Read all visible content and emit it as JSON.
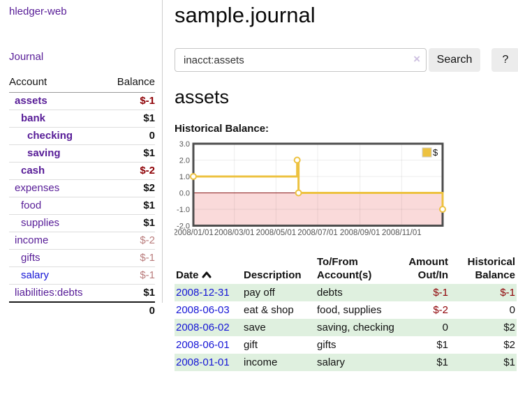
{
  "sidebar": {
    "app_title": "hledger-web",
    "journal_link": "Journal",
    "accounts": {
      "col_account": "Account",
      "col_balance": "Balance",
      "rows": [
        {
          "name": "assets",
          "indent": 0,
          "bold": true,
          "balance": "$-1",
          "balance_style": "negative"
        },
        {
          "name": "bank",
          "indent": 1,
          "bold": true,
          "balance": "$1",
          "balance_style": "normal"
        },
        {
          "name": "checking",
          "indent": 2,
          "bold": true,
          "balance": "0",
          "balance_style": "normal"
        },
        {
          "name": "saving",
          "indent": 2,
          "bold": true,
          "balance": "$1",
          "balance_style": "normal"
        },
        {
          "name": "cash",
          "indent": 1,
          "bold": true,
          "balance": "$-2",
          "balance_style": "negative"
        },
        {
          "name": "expenses",
          "indent": 0,
          "bold": false,
          "balance": "$2",
          "balance_style": "normal"
        },
        {
          "name": "food",
          "indent": 1,
          "bold": false,
          "balance": "$1",
          "balance_style": "normal"
        },
        {
          "name": "supplies",
          "indent": 1,
          "bold": false,
          "balance": "$1",
          "balance_style": "normal"
        },
        {
          "name": "income",
          "indent": 0,
          "bold": false,
          "balance": "$-2",
          "balance_style": "negative-faded"
        },
        {
          "name": "gifts",
          "indent": 1,
          "bold": false,
          "balance": "$-1",
          "balance_style": "negative-faded"
        },
        {
          "name": "salary",
          "indent": 1,
          "bold": false,
          "link_style": "unvisited",
          "balance": "$-1",
          "balance_style": "negative-faded"
        },
        {
          "name": "liabilities:debts",
          "indent": 0,
          "bold": false,
          "balance": "$1",
          "balance_style": "normal"
        }
      ],
      "total": "0"
    }
  },
  "main": {
    "title": "sample.journal",
    "search": {
      "value": "inacct:assets",
      "clear_icon": "×",
      "search_button": "Search",
      "help_button": "?"
    },
    "account_heading": "assets",
    "chart_title": "Historical Balance:"
  },
  "chart_data": {
    "type": "line",
    "step": true,
    "title": "Historical Balance of assets",
    "series": [
      {
        "name": "$",
        "color": "#edc240",
        "points": [
          [
            "2008-01-01",
            1
          ],
          [
            "2008-06-01",
            2
          ],
          [
            "2008-06-03",
            0
          ],
          [
            "2008-12-31",
            -1
          ]
        ]
      }
    ],
    "x_range": [
      "2008-01-01",
      "2008-12-31"
    ],
    "ylim": [
      -2,
      3
    ],
    "y_ticks": [
      {
        "value": 3,
        "label": "3.0"
      },
      {
        "value": 2,
        "label": "2.0"
      },
      {
        "value": 1,
        "label": "1.0"
      },
      {
        "value": 0,
        "label": "0.0"
      },
      {
        "value": -1,
        "label": "-1.0"
      },
      {
        "value": -2,
        "label": "-2.0"
      }
    ],
    "x_ticks": [
      {
        "date": "2008-01-01",
        "label": "2008/01/01"
      },
      {
        "date": "2008-03-01",
        "label": "2008/03/01"
      },
      {
        "date": "2008-05-01",
        "label": "2008/05/01"
      },
      {
        "date": "2008-07-01",
        "label": "2008/07/01"
      },
      {
        "date": "2008-09-01",
        "label": "2008/09/01"
      },
      {
        "date": "2008-11-01",
        "label": "2008/11/01"
      }
    ],
    "legend": {
      "label": "$",
      "position": "top-right"
    },
    "grid": true,
    "colors": {
      "negative_fill": "#fadada",
      "zero_line": "#8b1a1a",
      "border": "#4d4d4d",
      "grid": "rgba(0,0,0,0.07)",
      "tick_text": "#545454",
      "marker_fill": "#ffffff"
    }
  },
  "register": {
    "headers": {
      "date": "Date",
      "description": "Description",
      "tofrom_line1": "To/From",
      "tofrom_line2": "Account(s)",
      "amount_line1": "Amount",
      "amount_line2": "Out/In",
      "balance_line1": "Historical",
      "balance_line2": "Balance"
    },
    "rows": [
      {
        "date": "2008-12-31",
        "description": "pay off",
        "accounts": "debts",
        "amount": "$-1",
        "amount_negative": true,
        "balance": "$-1",
        "balance_negative": true
      },
      {
        "date": "2008-06-03",
        "description": "eat & shop",
        "accounts": "food, supplies",
        "amount": "$-2",
        "amount_negative": true,
        "balance": "0",
        "balance_negative": false
      },
      {
        "date": "2008-06-02",
        "description": "save",
        "accounts": "saving, checking",
        "amount": "0",
        "amount_negative": false,
        "balance": "$2",
        "balance_negative": false
      },
      {
        "date": "2008-06-01",
        "description": "gift",
        "accounts": "gifts",
        "amount": "$1",
        "amount_negative": false,
        "balance": "$2",
        "balance_negative": false
      },
      {
        "date": "2008-01-01",
        "description": "income",
        "accounts": "salary",
        "amount": "$1",
        "amount_negative": false,
        "balance": "$1",
        "balance_negative": false
      }
    ]
  }
}
